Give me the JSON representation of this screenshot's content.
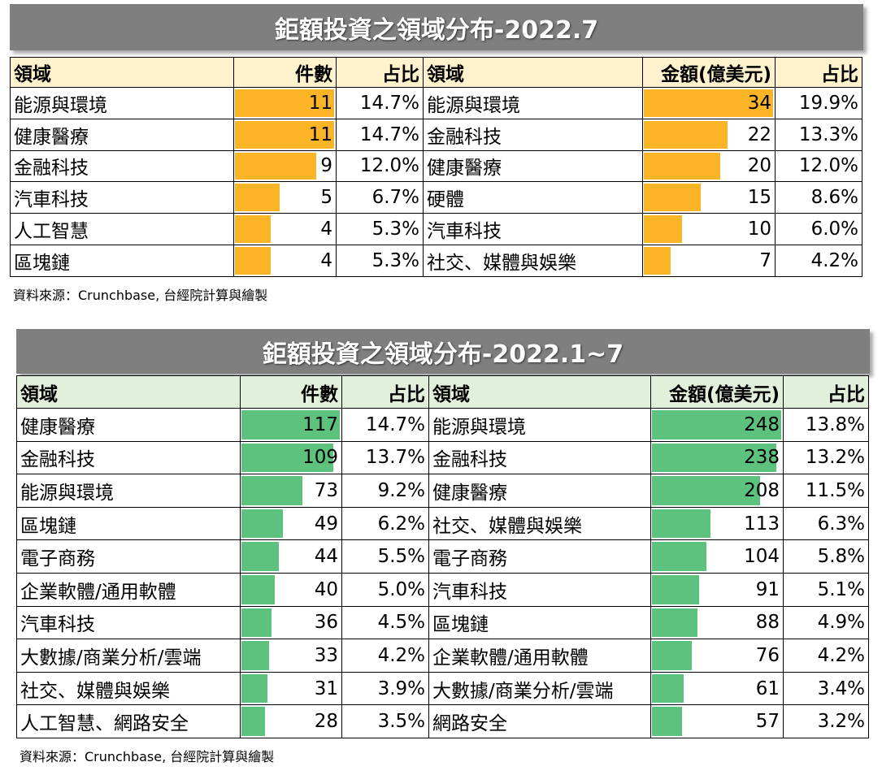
{
  "tables": [
    {
      "title": "鉅額投資之領域分布-2022.7",
      "columns": [
        "領域",
        "件數",
        "占比",
        "領域",
        "金額(億美元)",
        "占比"
      ],
      "rows": [
        [
          "能源與環境",
          11,
          "14.7%",
          "能源與環境",
          34,
          "19.9%"
        ],
        [
          "健康醫療",
          11,
          "14.7%",
          "金融科技",
          22,
          "13.3%"
        ],
        [
          "金融科技",
          9,
          "12.0%",
          "健康醫療",
          20,
          "12.0%"
        ],
        [
          "汽車科技",
          5,
          "6.7%",
          "硬體",
          15,
          "8.6%"
        ],
        [
          "人工智慧",
          4,
          "5.3%",
          "汽車科技",
          10,
          "6.0%"
        ],
        [
          "區塊鏈",
          4,
          "5.3%",
          "社交、媒體與娛樂",
          7,
          "4.2%"
        ]
      ],
      "source": "資料來源：Crunchbase, 台經院計算與繪製"
    },
    {
      "title": "鉅額投資之領域分布-2022.1~7",
      "columns": [
        "領域",
        "件數",
        "占比",
        "領域",
        "金額(億美元)",
        "占比"
      ],
      "rows": [
        [
          "健康醫療",
          117,
          "14.7%",
          "能源與環境",
          248,
          "13.8%"
        ],
        [
          "金融科技",
          109,
          "13.7%",
          "金融科技",
          238,
          "13.2%"
        ],
        [
          "能源與環境",
          73,
          "9.2%",
          "健康醫療",
          208,
          "11.5%"
        ],
        [
          "區塊鏈",
          49,
          "6.2%",
          "社交、媒體與娛樂",
          113,
          "6.3%"
        ],
        [
          "電子商務",
          44,
          "5.5%",
          "電子商務",
          104,
          "5.8%"
        ],
        [
          "企業軟體/通用軟體",
          40,
          "5.0%",
          "汽車科技",
          91,
          "5.1%"
        ],
        [
          "汽車科技",
          36,
          "4.5%",
          "區塊鏈",
          88,
          "4.9%"
        ],
        [
          "大數據/商業分析/雲端",
          33,
          "4.2%",
          "企業軟體/通用軟體",
          76,
          "4.2%"
        ],
        [
          "社交、媒體與娛樂",
          31,
          "3.9%",
          "大數據/商業分析/雲端",
          61,
          "3.4%"
        ],
        [
          "人工智慧、網路安全",
          28,
          "3.5%",
          "網路安全",
          57,
          "3.2%"
        ]
      ],
      "source": "資料來源：Crunchbase, 台經院計算與繪製"
    }
  ]
}
